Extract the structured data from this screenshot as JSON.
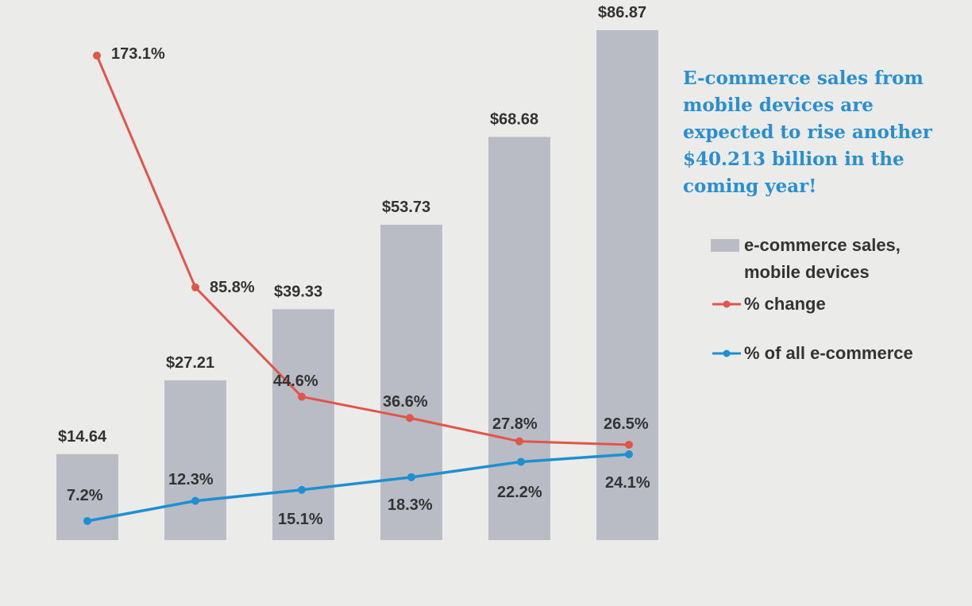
{
  "chart_data": {
    "type": "bar",
    "categories": [
      "",
      "",
      "",
      "",
      "",
      ""
    ],
    "series": [
      {
        "name": "e-commerce sales, mobile devices",
        "type": "bar",
        "values": [
          14.64,
          27.21,
          39.33,
          53.73,
          68.68,
          86.87
        ],
        "labels": [
          "$14.64",
          "$27.21",
          "$39.33",
          "$53.73",
          "$68.68",
          "$86.87"
        ],
        "color": "#b9bcc4"
      },
      {
        "name": "% change",
        "type": "line",
        "values": [
          173.1,
          85.8,
          44.6,
          36.6,
          27.8,
          26.5
        ],
        "labels": [
          "173.1%",
          "85.8%",
          "44.6%",
          "36.6%",
          "27.8%",
          "26.5%"
        ],
        "color": "#e0564a"
      },
      {
        "name": "% of all e-commerce",
        "type": "line",
        "values": [
          7.2,
          12.3,
          15.1,
          18.3,
          22.2,
          24.1
        ],
        "labels": [
          "7.2%",
          "12.3%",
          "15.1%",
          "18.3%",
          "22.2%",
          "24.1%"
        ],
        "color": "#1e8fd0"
      }
    ],
    "title": "",
    "xlabel": "",
    "ylabel": "",
    "grid": false,
    "legend_position": "right",
    "annotation": "E-commerce sales from mobile devices are expected to rise another $40.213 billion in the coming year!"
  },
  "annotation_color": "#2a8fd0"
}
